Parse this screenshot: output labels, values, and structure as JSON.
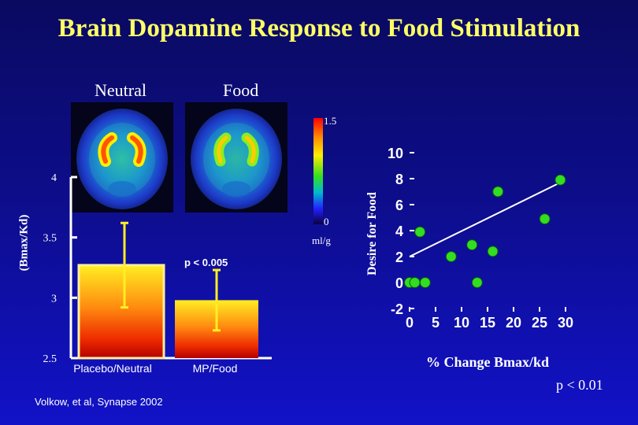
{
  "title": "Brain Dopamine Response to Food Stimulation",
  "images": {
    "neutral_label": "Neutral",
    "food_label": "Food"
  },
  "colorbar": {
    "max_label": "1.5",
    "min_label": "0",
    "unit": "ml/g"
  },
  "citation": "Volkow, et al, Synapse 2002",
  "chart_data": [
    {
      "type": "bar",
      "categories": [
        "Placebo/Neutral",
        "MP/Food"
      ],
      "values": [
        3.27,
        2.98
      ],
      "error_upper": [
        0.35,
        0.25
      ],
      "error_lower": [
        0.35,
        0.25
      ],
      "ylabel": "(Bmax/Kd)",
      "ylim": [
        2.5,
        4.0
      ],
      "yticks": [
        "2.5",
        "3",
        "3.5",
        "4"
      ],
      "annotation": "p < 0.005"
    },
    {
      "type": "scatter",
      "points": [
        {
          "x": 0,
          "y": 0
        },
        {
          "x": 1,
          "y": 0
        },
        {
          "x": 3,
          "y": 0
        },
        {
          "x": 2,
          "y": 3.9
        },
        {
          "x": 8,
          "y": 2
        },
        {
          "x": 13,
          "y": 0
        },
        {
          "x": 12,
          "y": 2.9
        },
        {
          "x": 16,
          "y": 2.4
        },
        {
          "x": 17,
          "y": 7
        },
        {
          "x": 26,
          "y": 4.9
        },
        {
          "x": 29,
          "y": 7.9
        }
      ],
      "trend_line": [
        [
          0,
          2
        ],
        [
          30,
          7.9
        ]
      ],
      "xlabel": "% Change Bmax/kd",
      "ylabel": "Desire for Food",
      "xticks": [
        "0",
        "5",
        "10",
        "15",
        "20",
        "25",
        "30"
      ],
      "yticks": [
        "-2",
        "0",
        "2",
        "4",
        "6",
        "8",
        "10"
      ],
      "xlim": [
        0,
        30
      ],
      "ylim": [
        -2,
        10
      ],
      "annotation": "p < 0.01"
    }
  ],
  "colors": {
    "title": "#ffff66",
    "point": "#33dd22",
    "bar_top": "#ffee22",
    "bar_bottom": "#cc0000"
  }
}
